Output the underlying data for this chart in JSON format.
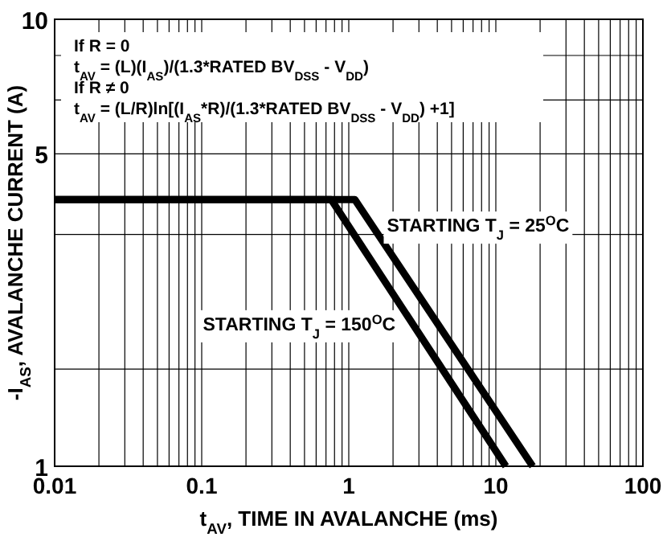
{
  "chart_data": {
    "type": "line",
    "xlabel": "t$_{AV}$, TIME IN AVALANCHE (ms)",
    "ylabel": "-I$_{AS}$, AVALANCHE CURRENT (A)",
    "log": "xy",
    "xlim": [
      0.01,
      100
    ],
    "ylim": [
      1,
      10
    ],
    "xticks": [
      0.01,
      {
        "value": 0.02,
        "label": null
      },
      {
        "value": 0.03,
        "label": null
      },
      {
        "value": 0.04,
        "label": null
      },
      {
        "value": 0.05,
        "label": null
      },
      {
        "value": 0.06,
        "label": null
      },
      {
        "value": 0.07,
        "label": null
      },
      {
        "value": 0.08,
        "label": null
      },
      {
        "value": 0.09,
        "label": null
      },
      0.1,
      {
        "value": 0.2,
        "label": null
      },
      {
        "value": 0.3,
        "label": null
      },
      {
        "value": 0.4,
        "label": null
      },
      {
        "value": 0.5,
        "label": null
      },
      {
        "value": 0.6,
        "label": null
      },
      {
        "value": 0.7,
        "label": null
      },
      {
        "value": 0.8,
        "label": null
      },
      {
        "value": 0.9,
        "label": null
      },
      1,
      {
        "value": 2,
        "label": null
      },
      {
        "value": 3,
        "label": null
      },
      {
        "value": 4,
        "label": null
      },
      {
        "value": 5,
        "label": null
      },
      {
        "value": 6,
        "label": null
      },
      {
        "value": 7,
        "label": null
      },
      {
        "value": 8,
        "label": null
      },
      {
        "value": 9,
        "label": null
      },
      10,
      {
        "value": 20,
        "label": null
      },
      {
        "value": 30,
        "label": null
      },
      {
        "value": 40,
        "label": null
      },
      {
        "value": 50,
        "label": null
      },
      {
        "value": 60,
        "label": null
      },
      {
        "value": 70,
        "label": null
      },
      {
        "value": 80,
        "label": null
      },
      {
        "value": 90,
        "label": null
      },
      100
    ],
    "yticks": [
      1,
      {
        "value": 1.65,
        "label": null
      },
      {
        "value": 3.3,
        "label": null
      },
      5,
      {
        "value": 6.6,
        "label": null
      },
      {
        "value": 8.3,
        "label": null
      },
      10
    ],
    "grid": true,
    "marker": "none",
    "line_style": "solid",
    "series": [
      {
        "name": "STARTING T$_{J}$ = 150$^{O}$C",
        "color": "#000000",
        "x": [
          0.01,
          0.76,
          11.7
        ],
        "values": [
          3.95,
          3.95,
          1
        ]
      },
      {
        "name": "STARTING T$_{J}$ = 25$^{O}$C",
        "color": "#000000",
        "x": [
          0.01,
          1.1,
          17.8
        ],
        "values": [
          3.95,
          3.95,
          1
        ]
      }
    ],
    "annotations": [
      "If R = 0",
      "t$_{AV}$ = (L)(I$_{AS}$)/(1.3*RATED BV$_{DSS}$ - V$_{DD}$)",
      "If R ≠ 0",
      "t$_{AV}$ = (L/R)ln[(I$_{AS}$*R)/(1.3*RATED BV$_{DSS}$ - V$_{DD}$) +1]"
    ]
  }
}
